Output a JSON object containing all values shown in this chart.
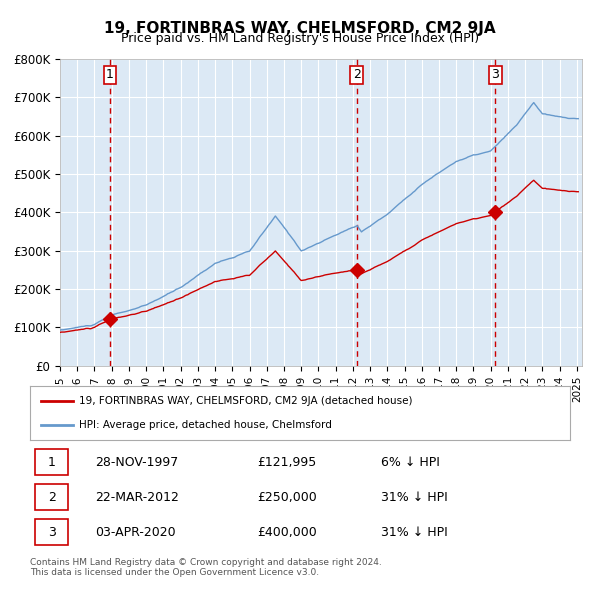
{
  "title": "19, FORTINBRAS WAY, CHELMSFORD, CM2 9JA",
  "subtitle": "Price paid vs. HM Land Registry's House Price Index (HPI)",
  "legend_line1": "19, FORTINBRAS WAY, CHELMSFORD, CM2 9JA (detached house)",
  "legend_line2": "HPI: Average price, detached house, Chelmsford",
  "footer1": "Contains HM Land Registry data © Crown copyright and database right 2024.",
  "footer2": "This data is licensed under the Open Government Licence v3.0.",
  "sale_color": "#cc0000",
  "hpi_color": "#6699cc",
  "background_color": "#dce9f5",
  "plot_bg": "#dce9f5",
  "grid_color": "#ffffff",
  "dashed_color": "#cc0000",
  "ylim": [
    0,
    800000
  ],
  "yticks": [
    0,
    100000,
    200000,
    300000,
    400000,
    500000,
    600000,
    700000,
    800000
  ],
  "ytick_labels": [
    "£0",
    "£100K",
    "£200K",
    "£300K",
    "£400K",
    "£500K",
    "£600K",
    "£700K",
    "£800K"
  ],
  "sale_dates_num": [
    1997.9,
    2012.23,
    2020.26
  ],
  "sale_prices": [
    121995,
    250000,
    400000
  ],
  "sale_labels": [
    "1",
    "2",
    "3"
  ],
  "sale_table": [
    {
      "num": "1",
      "date": "28-NOV-1997",
      "price": "£121,995",
      "pct": "6% ↓ HPI"
    },
    {
      "num": "2",
      "date": "22-MAR-2012",
      "price": "£250,000",
      "pct": "31% ↓ HPI"
    },
    {
      "num": "3",
      "date": "03-APR-2020",
      "price": "£400,000",
      "pct": "31% ↓ HPI"
    }
  ]
}
